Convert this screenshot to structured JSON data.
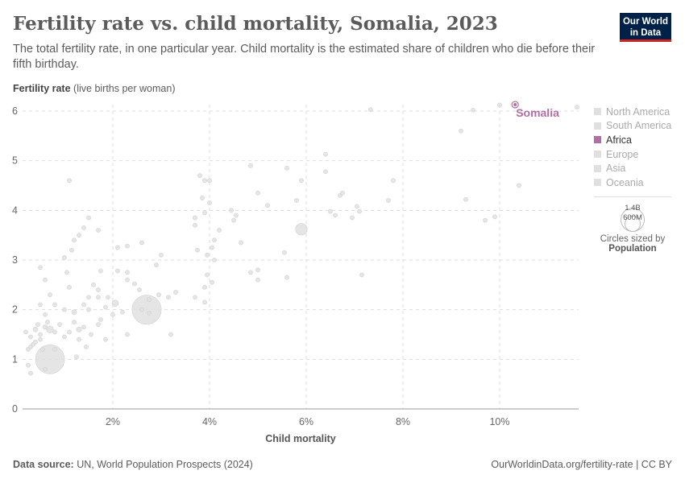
{
  "title": "Fertility rate vs. child mortality, Somalia, 2023",
  "subtitle": "The total fertility rate, in one particular year. Child mortality is the estimated share of children who die before their fifth birthday.",
  "logo": "Our World in Data",
  "footer": {
    "source_label": "Data source:",
    "source": "UN, World Population Prospects (2024)",
    "link": "OurWorldinData.org/fertility-rate | CC BY"
  },
  "legend": {
    "items": [
      {
        "label": "North America",
        "active": false
      },
      {
        "label": "South America",
        "active": false
      },
      {
        "label": "Africa",
        "active": true
      },
      {
        "label": "Europe",
        "active": false
      },
      {
        "label": "Asia",
        "active": false
      },
      {
        "label": "Oceania",
        "active": false
      }
    ],
    "size_big": "1.4B",
    "size_small": "600M",
    "size_caption": "Circles sized by",
    "size_var": "Population"
  },
  "colors": {
    "highlight": "#b16ea6",
    "background_points": "#e0e0e0",
    "grid": "#dddddd"
  },
  "chart_data": {
    "type": "scatter",
    "xlabel": "Child mortality",
    "ylabel": "Fertility rate",
    "ylabel_unit": "(live births per woman)",
    "xlim": [
      0.13,
      11.6
    ],
    "ylim": [
      0,
      6.2
    ],
    "xticks": [
      "2%",
      "4%",
      "6%",
      "8%",
      "10%"
    ],
    "xtick_values": [
      2,
      4,
      6,
      8,
      10
    ],
    "yticks": [
      "0",
      "1",
      "2",
      "3",
      "4",
      "5",
      "6"
    ],
    "ytick_values": [
      0,
      1,
      2,
      3,
      4,
      5,
      6
    ],
    "grid": true,
    "legend_placement": "right",
    "highlight": {
      "name": "Somalia",
      "x": 10.32,
      "y": 6.13,
      "pop": 18
    },
    "points": [
      [
        0.2,
        1.55,
        10
      ],
      [
        0.3,
        1.45,
        5
      ],
      [
        0.35,
        1.3,
        8
      ],
      [
        0.4,
        1.6,
        40
      ],
      [
        0.25,
        1.2,
        30
      ],
      [
        0.3,
        1.25,
        15
      ],
      [
        0.5,
        1.5,
        10
      ],
      [
        0.6,
        1.65,
        35
      ],
      [
        0.7,
        1.6,
        85
      ],
      [
        0.8,
        1.55,
        5
      ],
      [
        0.5,
        1.4,
        10
      ],
      [
        0.45,
        1.7,
        5
      ],
      [
        0.65,
        1.75,
        5
      ],
      [
        0.9,
        1.7,
        5
      ],
      [
        0.55,
        1.2,
        5
      ],
      [
        0.6,
        0.8,
        3
      ],
      [
        0.3,
        0.72,
        5
      ],
      [
        0.25,
        0.88,
        3
      ],
      [
        0.4,
        1.35,
        4
      ],
      [
        0.7,
        1.0,
        1420
      ],
      [
        0.8,
        1.2,
        8
      ],
      [
        0.6,
        1.9,
        3
      ],
      [
        0.7,
        2.3,
        5
      ],
      [
        0.8,
        2.1,
        3
      ],
      [
        0.5,
        2.1,
        3
      ],
      [
        0.6,
        2.6,
        3
      ],
      [
        0.5,
        2.85,
        3
      ],
      [
        1.0,
        2.0,
        4
      ],
      [
        1.1,
        2.45,
        3
      ],
      [
        1.0,
        3.05,
        3
      ],
      [
        1.05,
        2.75,
        3
      ],
      [
        1.15,
        3.2,
        3
      ],
      [
        1.2,
        1.95,
        40
      ],
      [
        1.3,
        1.6,
        45
      ],
      [
        1.4,
        1.65,
        20
      ],
      [
        1.2,
        1.75,
        15
      ],
      [
        1.1,
        1.55,
        5
      ],
      [
        1.0,
        1.45,
        4
      ],
      [
        1.25,
        1.05,
        3
      ],
      [
        1.3,
        1.4,
        3
      ],
      [
        1.45,
        1.25,
        3
      ],
      [
        1.5,
        2.0,
        5
      ],
      [
        1.4,
        2.1,
        3
      ],
      [
        1.5,
        2.25,
        3
      ],
      [
        1.6,
        2.5,
        3
      ],
      [
        1.7,
        2.25,
        8
      ],
      [
        1.75,
        2.78,
        20
      ],
      [
        1.7,
        2.4,
        3
      ],
      [
        1.85,
        2.05,
        5
      ],
      [
        1.9,
        2.25,
        3
      ],
      [
        1.85,
        1.4,
        3
      ],
      [
        1.75,
        1.8,
        5
      ],
      [
        1.7,
        1.7,
        3
      ],
      [
        1.55,
        1.5,
        3
      ],
      [
        2.0,
        1.9,
        25
      ],
      [
        2.05,
        2.13,
        70
      ],
      [
        2.1,
        2.78,
        15
      ],
      [
        2.1,
        3.25,
        3
      ],
      [
        2.2,
        1.95,
        3
      ],
      [
        2.3,
        2.6,
        3
      ],
      [
        2.3,
        2.75,
        3
      ],
      [
        2.45,
        2.52,
        3
      ],
      [
        2.55,
        2.4,
        3
      ],
      [
        2.3,
        3.28,
        8
      ],
      [
        2.3,
        1.5,
        3
      ],
      [
        2.7,
        2.0,
        1440
      ],
      [
        2.75,
        2.2,
        30
      ],
      [
        2.75,
        1.93,
        15
      ],
      [
        2.6,
        2.0,
        3
      ],
      [
        2.95,
        2.3,
        3
      ],
      [
        3.0,
        3.1,
        3
      ],
      [
        2.9,
        2.9,
        3
      ],
      [
        3.2,
        1.5,
        3
      ],
      [
        3.3,
        2.35,
        3
      ],
      [
        3.15,
        2.25,
        3
      ],
      [
        3.7,
        2.25,
        10
      ],
      [
        3.9,
        2.15,
        15
      ],
      [
        3.95,
        2.7,
        3
      ],
      [
        3.9,
        2.45,
        3
      ],
      [
        4.05,
        2.55,
        3
      ],
      [
        4.05,
        3.25,
        8
      ],
      [
        3.95,
        3.1,
        3
      ],
      [
        3.75,
        3.2,
        3
      ],
      [
        4.1,
        3.4,
        3
      ],
      [
        4.2,
        3.6,
        3
      ],
      [
        3.85,
        4.25,
        10
      ],
      [
        3.9,
        4.6,
        15
      ],
      [
        3.8,
        4.7,
        3
      ],
      [
        4.0,
        4.6,
        5
      ],
      [
        4.0,
        4.15,
        3
      ],
      [
        3.7,
        3.85,
        3
      ],
      [
        3.7,
        3.7,
        3
      ],
      [
        3.9,
        3.95,
        3
      ],
      [
        4.1,
        3.0,
        3
      ],
      [
        4.45,
        4.0,
        20
      ],
      [
        4.55,
        3.9,
        5
      ],
      [
        4.5,
        3.8,
        3
      ],
      [
        4.65,
        3.35,
        3
      ],
      [
        4.85,
        2.75,
        3
      ],
      [
        4.85,
        4.9,
        3
      ],
      [
        5.0,
        4.35,
        8
      ],
      [
        5.0,
        2.6,
        3
      ],
      [
        5.0,
        2.8,
        3
      ],
      [
        5.2,
        4.1,
        3
      ],
      [
        5.55,
        3.15,
        3
      ],
      [
        5.6,
        4.85,
        8
      ],
      [
        5.6,
        2.65,
        3
      ],
      [
        5.9,
        3.62,
        230
      ],
      [
        5.8,
        4.2,
        3
      ],
      [
        5.9,
        4.6,
        3
      ],
      [
        6.4,
        5.13,
        5
      ],
      [
        6.4,
        4.78,
        5
      ],
      [
        6.5,
        3.98,
        3
      ],
      [
        6.7,
        4.3,
        5
      ],
      [
        6.75,
        4.35,
        3
      ],
      [
        6.6,
        3.9,
        3
      ],
      [
        6.95,
        3.85,
        3
      ],
      [
        7.05,
        4.08,
        3
      ],
      [
        7.1,
        3.98,
        3
      ],
      [
        7.15,
        2.7,
        3
      ],
      [
        7.33,
        6.03,
        19
      ],
      [
        7.7,
        4.2,
        3
      ],
      [
        7.8,
        4.6,
        3
      ],
      [
        9.2,
        5.6,
        3
      ],
      [
        9.45,
        6.02,
        3
      ],
      [
        9.3,
        4.22,
        3
      ],
      [
        9.7,
        3.8,
        3
      ],
      [
        9.9,
        3.87,
        3
      ],
      [
        10.0,
        6.12,
        3
      ],
      [
        10.4,
        4.5,
        30
      ],
      [
        11.6,
        6.08,
        3
      ],
      [
        1.1,
        4.6,
        3
      ],
      [
        1.7,
        3.6,
        3
      ],
      [
        1.5,
        3.85,
        3
      ],
      [
        1.3,
        3.5,
        3
      ],
      [
        1.2,
        3.4,
        3
      ],
      [
        2.6,
        3.35,
        3
      ],
      [
        1.4,
        3.65,
        3
      ]
    ]
  }
}
